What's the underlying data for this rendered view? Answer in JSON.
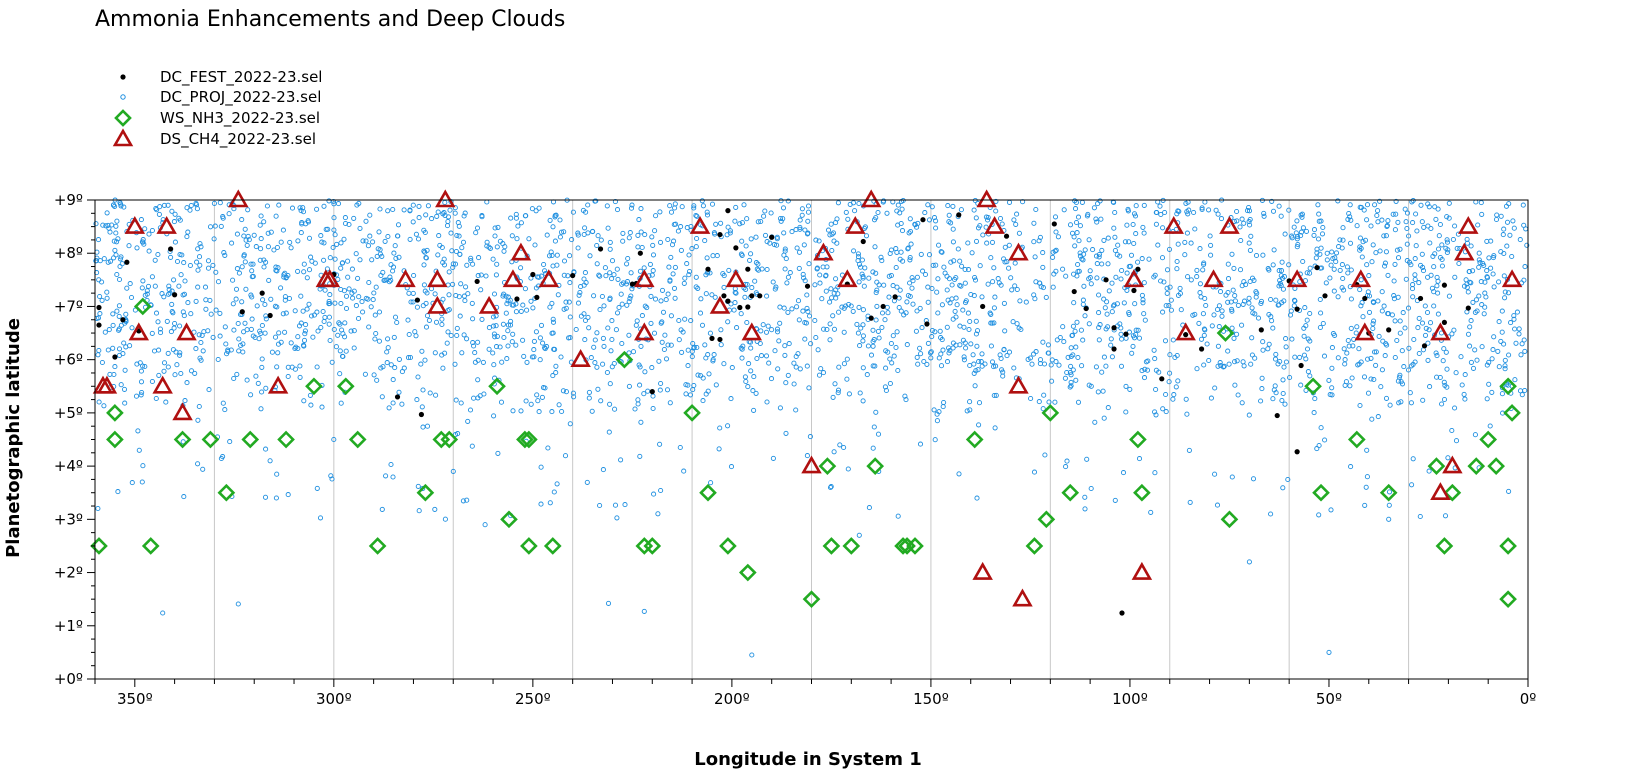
{
  "chart_data": {
    "type": "scatter",
    "title": "Ammonia Enhancements and Deep Clouds",
    "xlabel": "Longitude in System 1",
    "ylabel": "Planetographic latitude",
    "xlim": [
      360,
      0
    ],
    "ylim": [
      0,
      9
    ],
    "x_ticks": [
      350,
      300,
      250,
      200,
      150,
      100,
      50,
      0
    ],
    "x_tick_labels": [
      "350º",
      "300º",
      "250º",
      "200º",
      "150º",
      "100º",
      "50º",
      "0º"
    ],
    "y_ticks": [
      0,
      1,
      2,
      3,
      4,
      5,
      6,
      7,
      8,
      9
    ],
    "y_tick_labels": [
      "+0º",
      "+1º",
      "+2º",
      "+3º",
      "+4º",
      "+5º",
      "+6º",
      "+7º",
      "+8º",
      "+9º"
    ],
    "vertical_gridlines_at": [
      330,
      300,
      270,
      240,
      210,
      180,
      150,
      120,
      90,
      60,
      30
    ],
    "legend_position": "top-left",
    "colors": {
      "DC_FEST": "#000000",
      "DC_PROJ": "#1e8fe0",
      "WS_NH3": "#22aa22",
      "DS_CH4": "#b01010",
      "grid": "#c8c8c8"
    },
    "series": [
      {
        "name": "DC_FEST_2022-23.sel",
        "marker": "filled-dot",
        "points": [
          [
            359,
            6.98
          ],
          [
            359,
            6.65
          ],
          [
            355,
            6.05
          ],
          [
            353,
            6.75
          ],
          [
            352,
            7.83
          ],
          [
            349,
            6.54
          ],
          [
            340,
            7.22
          ],
          [
            341,
            8.08
          ],
          [
            323,
            6.9
          ],
          [
            318,
            7.25
          ],
          [
            316,
            6.83
          ],
          [
            300,
            7.6
          ],
          [
            284,
            5.3
          ],
          [
            279,
            7.12
          ],
          [
            278,
            4.97
          ],
          [
            264,
            7.47
          ],
          [
            254,
            7.14
          ],
          [
            250,
            7.6
          ],
          [
            249,
            7.17
          ],
          [
            240,
            7.58
          ],
          [
            233,
            8.08
          ],
          [
            223,
            8.0
          ],
          [
            225,
            7.42
          ],
          [
            220,
            5.4
          ],
          [
            224,
            7.43
          ],
          [
            206,
            7.7
          ],
          [
            203,
            8.35
          ],
          [
            201,
            8.8
          ],
          [
            201,
            7.1
          ],
          [
            199,
            8.1
          ],
          [
            196,
            7.7
          ],
          [
            198,
            6.98
          ],
          [
            196,
            6.99
          ],
          [
            203,
            6.38
          ],
          [
            202,
            7.2
          ],
          [
            205,
            6.4
          ],
          [
            195,
            7.2
          ],
          [
            193,
            7.2
          ],
          [
            190,
            8.3
          ],
          [
            181,
            7.38
          ],
          [
            171,
            7.42
          ],
          [
            167,
            8.22
          ],
          [
            165,
            6.78
          ],
          [
            162,
            7.0
          ],
          [
            159,
            7.18
          ],
          [
            152,
            8.63
          ],
          [
            151,
            6.67
          ],
          [
            143,
            8.72
          ],
          [
            137,
            7.0
          ],
          [
            131,
            8.32
          ],
          [
            119,
            8.55
          ],
          [
            114,
            7.28
          ],
          [
            111,
            6.96
          ],
          [
            106,
            7.5
          ],
          [
            104,
            6.6
          ],
          [
            101,
            6.48
          ],
          [
            98,
            7.7
          ],
          [
            104,
            6.2
          ],
          [
            99,
            7.3
          ],
          [
            92,
            5.64
          ],
          [
            86,
            6.47
          ],
          [
            82,
            6.2
          ],
          [
            60,
            7.48
          ],
          [
            58,
            6.95
          ],
          [
            58,
            4.27
          ],
          [
            63,
            4.95
          ],
          [
            57,
            5.89
          ],
          [
            53,
            7.73
          ],
          [
            51,
            7.2
          ],
          [
            43,
            7.41
          ],
          [
            41,
            7.15
          ],
          [
            40,
            6.5
          ],
          [
            35,
            6.56
          ],
          [
            27,
            7.15
          ],
          [
            26,
            6.26
          ],
          [
            21,
            7.4
          ],
          [
            21,
            6.7
          ],
          [
            15,
            6.97
          ],
          [
            102,
            1.24
          ],
          [
            67,
            6.56
          ]
        ]
      },
      {
        "name": "DC_PROJ_2022-23.sel",
        "marker": "open-circle",
        "generated": true,
        "outlier_points": [
          [
            343,
            1.24
          ],
          [
            324,
            1.41
          ],
          [
            231,
            1.42
          ],
          [
            222,
            1.27
          ],
          [
            195,
            0.45
          ],
          [
            70,
            2.2
          ],
          [
            50,
            0.5
          ],
          [
            262,
            2.9
          ],
          [
            245,
            5.7
          ],
          [
            168,
            2.7
          ],
          [
            300,
            4.5
          ],
          [
            270,
            3.9
          ],
          [
            316,
            4.1
          ],
          [
            35,
            3.0
          ]
        ]
      },
      {
        "name": "WS_NH3_2022-23.sel",
        "marker": "open-diamond",
        "points": [
          [
            348,
            7.0
          ],
          [
            355,
            5.0
          ],
          [
            355,
            4.5
          ],
          [
            338,
            4.5
          ],
          [
            331,
            4.5
          ],
          [
            321,
            4.5
          ],
          [
            312,
            4.5
          ],
          [
            305,
            5.5
          ],
          [
            297,
            5.5
          ],
          [
            294,
            4.5
          ],
          [
            273,
            4.5
          ],
          [
            271,
            4.5
          ],
          [
            259,
            5.5
          ],
          [
            252,
            4.5
          ],
          [
            251,
            4.5
          ],
          [
            227,
            6.0
          ],
          [
            210,
            5.0
          ],
          [
            327,
            3.5
          ],
          [
            277,
            3.5
          ],
          [
            256,
            3.0
          ],
          [
            206,
            3.5
          ],
          [
            176,
            4.0
          ],
          [
            164,
            4.0
          ],
          [
            139,
            4.5
          ],
          [
            120,
            5.0
          ],
          [
            98,
            4.5
          ],
          [
            76,
            6.5
          ],
          [
            54,
            5.5
          ],
          [
            43,
            4.5
          ],
          [
            23,
            4.0
          ],
          [
            13,
            4.0
          ],
          [
            10,
            4.5
          ],
          [
            8,
            4.0
          ],
          [
            5,
            5.5
          ],
          [
            4,
            5.0
          ],
          [
            359,
            2.5
          ],
          [
            346,
            2.5
          ],
          [
            289,
            2.5
          ],
          [
            251,
            2.5
          ],
          [
            245,
            2.5
          ],
          [
            222,
            2.5
          ],
          [
            220,
            2.5
          ],
          [
            201,
            2.5
          ],
          [
            196,
            2.0
          ],
          [
            180,
            1.5
          ],
          [
            175,
            2.5
          ],
          [
            170,
            2.5
          ],
          [
            157,
            2.5
          ],
          [
            156,
            2.5
          ],
          [
            154,
            2.5
          ],
          [
            124,
            2.5
          ],
          [
            121,
            3.0
          ],
          [
            115,
            3.5
          ],
          [
            97,
            3.5
          ],
          [
            75,
            3.0
          ],
          [
            52,
            3.5
          ],
          [
            35,
            3.5
          ],
          [
            19,
            3.5
          ],
          [
            21,
            2.5
          ],
          [
            5,
            2.5
          ],
          [
            5,
            1.5
          ]
        ]
      },
      {
        "name": "DS_CH4_2022-23.sel",
        "marker": "open-triangle",
        "points": [
          [
            350,
            8.5
          ],
          [
            342,
            8.5
          ],
          [
            324,
            9.0
          ],
          [
            302,
            7.5
          ],
          [
            301,
            7.5
          ],
          [
            282,
            7.5
          ],
          [
            274,
            7.5
          ],
          [
            274,
            7.0
          ],
          [
            272,
            9.0
          ],
          [
            261,
            7.0
          ],
          [
            255,
            7.5
          ],
          [
            253,
            8.0
          ],
          [
            246,
            7.5
          ],
          [
            238,
            6.0
          ],
          [
            222,
            7.5
          ],
          [
            222,
            6.5
          ],
          [
            208,
            8.5
          ],
          [
            199,
            7.5
          ],
          [
            195,
            6.5
          ],
          [
            177,
            8.0
          ],
          [
            171,
            7.5
          ],
          [
            169,
            8.5
          ],
          [
            165,
            9.0
          ],
          [
            136,
            9.0
          ],
          [
            134,
            8.5
          ],
          [
            128,
            8.0
          ],
          [
            128,
            5.5
          ],
          [
            127,
            1.5
          ],
          [
            137,
            2.0
          ],
          [
            99,
            7.5
          ],
          [
            97,
            2.0
          ],
          [
            89,
            8.5
          ],
          [
            86,
            6.5
          ],
          [
            79,
            7.5
          ],
          [
            75,
            8.5
          ],
          [
            58,
            7.5
          ],
          [
            42,
            7.5
          ],
          [
            41,
            6.5
          ],
          [
            22,
            6.5
          ],
          [
            22,
            3.5
          ],
          [
            19,
            4.0
          ],
          [
            16,
            8.0
          ],
          [
            15,
            8.5
          ],
          [
            4,
            7.5
          ],
          [
            361,
            5.5
          ],
          [
            357,
            5.5
          ],
          [
            343,
            5.5
          ],
          [
            338,
            5.0
          ],
          [
            337,
            6.5
          ],
          [
            349,
            6.5
          ],
          [
            314,
            5.5
          ],
          [
            180,
            4.0
          ],
          [
            203,
            7.0
          ]
        ]
      }
    ]
  }
}
